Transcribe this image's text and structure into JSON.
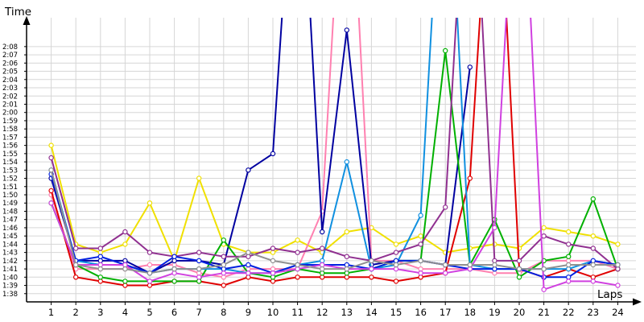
{
  "chart_data": {
    "type": "line",
    "xlabel": "Laps",
    "ylabel": "Time",
    "x": [
      1,
      2,
      3,
      4,
      5,
      6,
      7,
      8,
      9,
      10,
      11,
      12,
      13,
      14,
      15,
      16,
      17,
      18,
      19,
      20,
      21,
      22,
      23,
      24
    ],
    "xtick_labels": [
      "1",
      "2",
      "3",
      "4",
      "5",
      "6",
      "7",
      "8",
      "9",
      "10",
      "11",
      "12",
      "13",
      "14",
      "15",
      "16",
      "17",
      "18",
      "19",
      "20",
      "21",
      "22",
      "23",
      "24"
    ],
    "y_unit": "seconds",
    "ytick_labels": [
      "1:38",
      "1:39",
      "1:40",
      "1:41",
      "1:42",
      "1:43",
      "1:44",
      "1:45",
      "1:46",
      "1:47",
      "1:48",
      "1:49",
      "1:50",
      "1:51",
      "1:52",
      "1:53",
      "1:54",
      "1:55",
      "1:56",
      "1:57",
      "1:58",
      "1:59",
      "2:00",
      "2:01",
      "2:02",
      "2:03",
      "2:04",
      "2:05",
      "2:06",
      "2:07",
      "2:08"
    ],
    "ylim": [
      97,
      129
    ],
    "xlim": [
      0,
      24.4
    ],
    "grid": true,
    "series": [
      {
        "color": "#f0e000",
        "values": [
          116,
          104,
          103,
          104,
          109,
          102,
          112,
          104,
          103,
          103,
          104.5,
          103,
          105.5,
          106,
          104,
          105,
          103,
          103.5,
          104,
          103.5,
          106,
          105.5,
          105,
          104
        ]
      },
      {
        "color": "#ff80b0",
        "values": [
          110,
          101,
          101,
          101,
          101.5,
          101.5,
          100.5,
          100,
          101,
          101,
          101,
          108,
          160,
          102,
          102,
          101,
          101,
          101,
          100.5,
          100.5,
          102,
          102,
          102,
          101
        ]
      },
      {
        "color": "#0000a0",
        "values": [
          112,
          102,
          102,
          102,
          100.5,
          102,
          102,
          101.5,
          113,
          115,
          160,
          105.5,
          130,
          101.5,
          102,
          102,
          101.5,
          125.5,
          null,
          null,
          null,
          null,
          null,
          null
        ]
      },
      {
        "color": "#e00000",
        "values": [
          110.5,
          100,
          99.5,
          99,
          99,
          99.5,
          99.5,
          99,
          100,
          99.5,
          100,
          100,
          100,
          100,
          99.5,
          100,
          100.5,
          112,
          160,
          101,
          100,
          101,
          100,
          101
        ]
      },
      {
        "color": "#00b000",
        "values": [
          109,
          101.5,
          100,
          99.5,
          99.5,
          99.5,
          99.5,
          104.5,
          100.5,
          100,
          101,
          100.5,
          100.5,
          101,
          102,
          102,
          127.5,
          101.5,
          107,
          100,
          102,
          102.5,
          109.5,
          101
        ]
      },
      {
        "color": "#1090e0",
        "values": [
          113,
          102,
          101.5,
          101.5,
          100.5,
          101,
          101,
          101,
          100.5,
          100.5,
          101.5,
          102,
          114,
          101,
          101.5,
          107.5,
          160,
          101.5,
          101,
          101,
          101,
          101,
          102,
          101.5
        ]
      },
      {
        "color": "#903090",
        "values": [
          114.5,
          103.5,
          103.5,
          105.5,
          103,
          102.5,
          103,
          102.5,
          102.5,
          103.5,
          103,
          103.5,
          102.5,
          102,
          103,
          104,
          108.5,
          160,
          102,
          102,
          105,
          104,
          103.5,
          101
        ]
      },
      {
        "color": "#0020e0",
        "values": [
          112.5,
          102,
          102.5,
          101.5,
          100.5,
          102.5,
          102,
          101,
          101.5,
          100.5,
          101.5,
          101.5,
          101.5,
          101,
          102,
          102,
          101.5,
          101,
          101,
          101,
          100,
          100,
          102,
          101.5
        ]
      },
      {
        "color": "#d040e0",
        "values": [
          109,
          101.5,
          101.5,
          101.5,
          99.5,
          100.5,
          100,
          100.5,
          100.5,
          100.5,
          101,
          101.5,
          101,
          101,
          101,
          100.5,
          100.5,
          101,
          106,
          160,
          98.5,
          99.5,
          99.5,
          99
        ]
      },
      {
        "color": "#909090",
        "values": [
          113,
          101.5,
          101,
          101,
          100.5,
          101,
          101,
          101.5,
          103,
          102,
          101.5,
          101,
          101,
          102,
          101.5,
          102,
          101.5,
          101.5,
          101.5,
          101,
          101,
          101.5,
          101.5,
          101.5
        ]
      }
    ]
  }
}
